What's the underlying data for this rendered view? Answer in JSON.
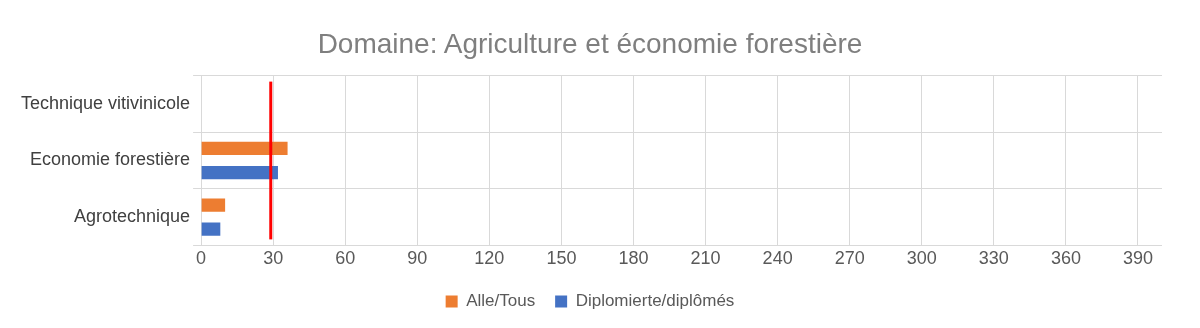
{
  "chart_data": {
    "type": "bar",
    "orientation": "horizontal",
    "title": "Domaine: Agriculture et économie forestière",
    "categories": [
      "Technique vitivinicole",
      "Economie forestière",
      "Agrotechnique"
    ],
    "series": [
      {
        "name": "Alle/Tous",
        "color": "#ed7d31",
        "values": [
          0,
          36,
          10
        ]
      },
      {
        "name": "Diplomierte/diplômés",
        "color": "#4472c4",
        "values": [
          0,
          32,
          8
        ]
      }
    ],
    "xlim": [
      0,
      400
    ],
    "xticks": [
      0,
      30,
      60,
      90,
      120,
      150,
      180,
      210,
      240,
      270,
      300,
      330,
      360,
      390
    ],
    "ref_lines": [
      {
        "axis": "x",
        "value": 29,
        "color": "#ff0000"
      }
    ],
    "grid": true,
    "legend": "bottom"
  }
}
